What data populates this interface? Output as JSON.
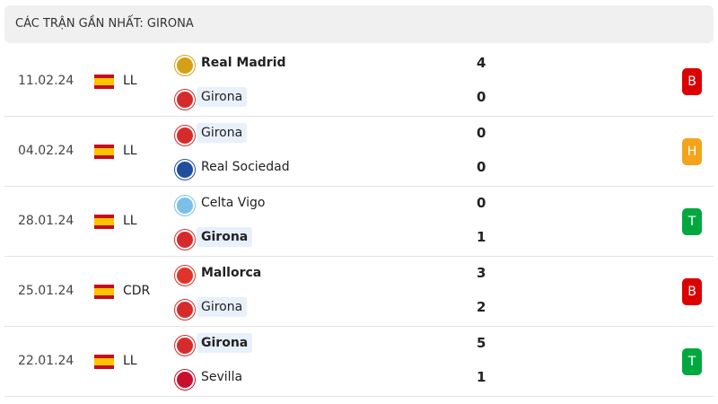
{
  "header": {
    "title": "CÁC TRẬN GẦN NHẤT: GIRONA"
  },
  "matches": [
    {
      "date": "11.02.24",
      "competition": "LL",
      "result": "B",
      "result_color": "#dc0000",
      "teams": [
        {
          "name": "Real Madrid",
          "score": 4,
          "bold": true,
          "highlight": false,
          "logo_color": "#d4a017"
        },
        {
          "name": "Girona",
          "score": 0,
          "bold": false,
          "highlight": true,
          "logo_color": "#d62b2b"
        }
      ]
    },
    {
      "date": "04.02.24",
      "competition": "LL",
      "result": "H",
      "result_color": "#f5a31a",
      "teams": [
        {
          "name": "Girona",
          "score": 0,
          "bold": false,
          "highlight": true,
          "logo_color": "#d62b2b"
        },
        {
          "name": "Real Sociedad",
          "score": 0,
          "bold": false,
          "highlight": false,
          "logo_color": "#1f4e9c"
        }
      ]
    },
    {
      "date": "28.01.24",
      "competition": "LL",
      "result": "T",
      "result_color": "#00a83f",
      "teams": [
        {
          "name": "Celta Vigo",
          "score": 0,
          "bold": false,
          "highlight": false,
          "logo_color": "#7cc0ea"
        },
        {
          "name": "Girona",
          "score": 1,
          "bold": true,
          "highlight": true,
          "logo_color": "#d62b2b"
        }
      ]
    },
    {
      "date": "25.01.24",
      "competition": "CDR",
      "result": "B",
      "result_color": "#dc0000",
      "teams": [
        {
          "name": "Mallorca",
          "score": 3,
          "bold": true,
          "highlight": false,
          "logo_color": "#e0342a"
        },
        {
          "name": "Girona",
          "score": 2,
          "bold": false,
          "highlight": true,
          "logo_color": "#d62b2b"
        }
      ]
    },
    {
      "date": "22.01.24",
      "competition": "LL",
      "result": "T",
      "result_color": "#00a83f",
      "teams": [
        {
          "name": "Girona",
          "score": 5,
          "bold": true,
          "highlight": true,
          "logo_color": "#d62b2b"
        },
        {
          "name": "Sevilla",
          "score": 1,
          "bold": false,
          "highlight": false,
          "logo_color": "#c8102e"
        }
      ]
    }
  ]
}
